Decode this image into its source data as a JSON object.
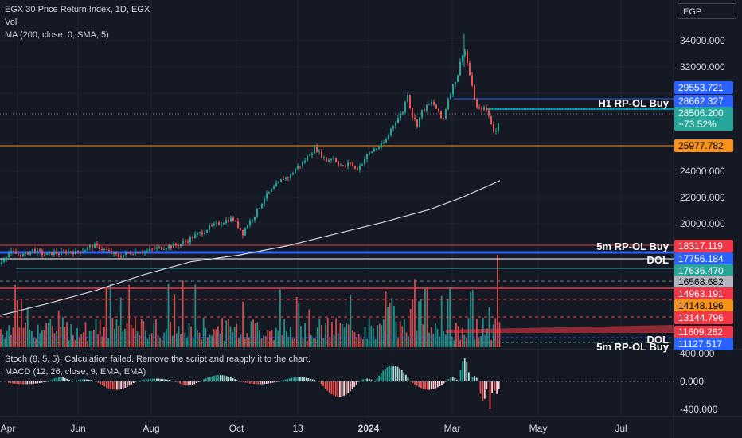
{
  "legend": {
    "title": "EGX 30 Price Return Index, 1D, EGX",
    "vol": "Vol",
    "ma": "MA (200, close, 0, SMA, 5)"
  },
  "indicators": {
    "stoch": "Stoch (8, 5, 5): Calculation failed. Remove the script and reapply it to the chart.",
    "macd": "MACD (12, 26, close, 9, EMA, EMA)"
  },
  "currency": "EGP",
  "price_axis": {
    "ticks": [
      "34000.000",
      "32000.000",
      "24000.000",
      "22000.000",
      "20000.000"
    ],
    "macd_ticks": [
      "400.000",
      "0.000",
      "-400.000"
    ]
  },
  "time_axis": [
    "Apr",
    "Jun",
    "Aug",
    "Oct",
    "13",
    "2024",
    "Mar",
    "May",
    "Jul"
  ],
  "price_tags": [
    {
      "value": "29553.721",
      "color": "#2962ff",
      "text_color": "#ffffff"
    },
    {
      "value": "28662.327",
      "color": "#2962ff",
      "text_color": "#ffffff"
    },
    {
      "value": "28506.200",
      "color": "#26a69a",
      "text_color": "#ffffff"
    },
    {
      "value": "+73.52%",
      "color": "#26a69a",
      "text_color": "#ffffff"
    },
    {
      "value": "25977.782",
      "color": "#f7931a",
      "text_color": "#000000"
    },
    {
      "value": "18317.119",
      "color": "#f23645",
      "text_color": "#ffffff"
    },
    {
      "value": "17756.184",
      "color": "#2962ff",
      "text_color": "#ffffff"
    },
    {
      "value": "17636.470",
      "color": "#26a69a",
      "text_color": "#ffffff"
    },
    {
      "value": "16568.682",
      "color": "#b2b5be",
      "text_color": "#000000"
    },
    {
      "value": "14963.191",
      "color": "#f23645",
      "text_color": "#ffffff"
    },
    {
      "value": "14148.196",
      "color": "#f7931a",
      "text_color": "#000000"
    },
    {
      "value": "13144.796",
      "color": "#f23645",
      "text_color": "#ffffff"
    },
    {
      "value": "11609.262",
      "color": "#f23645",
      "text_color": "#ffffff"
    },
    {
      "value": "11127.517",
      "color": "#2962ff",
      "text_color": "#ffffff"
    }
  ],
  "line_labels": [
    "H1 RP-OL Buy",
    "5m RP-OL Buy",
    "DOL",
    "DOL",
    "5m RP-OL Buy"
  ],
  "chart_data": {
    "type": "candlestick",
    "symbol": "EGX 30 Price Return Index",
    "interval": "1D",
    "last_close": 28506.2,
    "change_pct": 73.52,
    "close_path": [
      [
        0,
        16900
      ],
      [
        6,
        17500
      ],
      [
        12,
        17800
      ],
      [
        20,
        17700
      ],
      [
        30,
        17600
      ],
      [
        40,
        18000
      ],
      [
        50,
        17800
      ],
      [
        58,
        17600
      ],
      [
        66,
        17800
      ],
      [
        75,
        17700
      ],
      [
        85,
        17900
      ],
      [
        95,
        17800
      ],
      [
        105,
        18000
      ],
      [
        112,
        18200
      ],
      [
        120,
        18300
      ],
      [
        128,
        18100
      ],
      [
        135,
        17900
      ],
      [
        142,
        17700
      ],
      [
        150,
        17500
      ],
      [
        158,
        17700
      ],
      [
        166,
        17800
      ],
      [
        175,
        17900
      ],
      [
        185,
        17900
      ],
      [
        195,
        18100
      ],
      [
        205,
        18200
      ],
      [
        215,
        18300
      ],
      [
        225,
        18400
      ],
      [
        235,
        18700
      ],
      [
        245,
        19100
      ],
      [
        255,
        19400
      ],
      [
        262,
        19700
      ],
      [
        270,
        19900
      ],
      [
        278,
        20100
      ],
      [
        285,
        20300
      ],
      [
        292,
        20400
      ],
      [
        298,
        19900
      ],
      [
        305,
        19300
      ],
      [
        310,
        19900
      ],
      [
        318,
        20500
      ],
      [
        325,
        21200
      ],
      [
        332,
        22000
      ],
      [
        340,
        22500
      ],
      [
        348,
        23000
      ],
      [
        356,
        23500
      ],
      [
        364,
        23600
      ],
      [
        372,
        24300
      ],
      [
        380,
        24600
      ],
      [
        388,
        25300
      ],
      [
        396,
        25800
      ],
      [
        402,
        25400
      ],
      [
        410,
        24800
      ],
      [
        418,
        25100
      ],
      [
        425,
        24600
      ],
      [
        432,
        24300
      ],
      [
        440,
        24700
      ],
      [
        447,
        24100
      ],
      [
        454,
        24600
      ],
      [
        462,
        25300
      ],
      [
        470,
        25700
      ],
      [
        478,
        25900
      ],
      [
        486,
        26500
      ],
      [
        492,
        27400
      ],
      [
        500,
        28100
      ],
      [
        506,
        28600
      ],
      [
        512,
        30000
      ],
      [
        517,
        28300
      ],
      [
        524,
        27600
      ],
      [
        530,
        28600
      ],
      [
        537,
        29000
      ],
      [
        543,
        29300
      ],
      [
        550,
        28600
      ],
      [
        556,
        27800
      ],
      [
        563,
        29600
      ],
      [
        570,
        30700
      ],
      [
        576,
        31600
      ],
      [
        580,
        33000
      ],
      [
        584,
        33200
      ],
      [
        588,
        32000
      ],
      [
        592,
        30700
      ],
      [
        596,
        29600
      ],
      [
        600,
        28600
      ],
      [
        606,
        28900
      ],
      [
        612,
        28600
      ],
      [
        618,
        27500
      ],
      [
        622,
        26800
      ],
      [
        626,
        27800
      ],
      [
        628,
        28506
      ]
    ],
    "ma200_path": [
      [
        0,
        13000
      ],
      [
        60,
        13900
      ],
      [
        120,
        14900
      ],
      [
        180,
        16100
      ],
      [
        240,
        17100
      ],
      [
        300,
        17600
      ],
      [
        360,
        18300
      ],
      [
        420,
        19200
      ],
      [
        480,
        20100
      ],
      [
        540,
        21100
      ],
      [
        580,
        22000
      ],
      [
        628,
        23300
      ]
    ],
    "volume_bars": {
      "x_from": 0,
      "x_to": 628
    },
    "macd": {
      "range": [
        -400,
        400
      ],
      "zero": 0
    }
  }
}
